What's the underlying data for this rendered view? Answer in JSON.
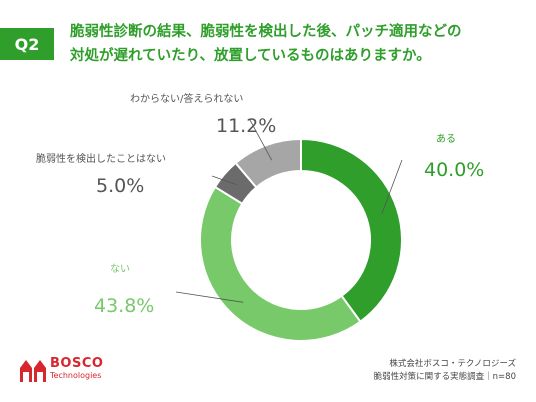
{
  "question_label": "Q2",
  "title_lines": [
    "脆弱性診断の結果、脆弱性を検出した後、パッチ適用などの",
    "対処が遅れていたり、放置しているものはありますか。"
  ],
  "colors": {
    "accent": "#2f9e2b",
    "brand_red": "#d7262d"
  },
  "chart_data": {
    "type": "pie",
    "donut": true,
    "categories": [
      "ある",
      "ない",
      "脆弱性を検出したことはない",
      "わからない/答えられない"
    ],
    "values": [
      40.0,
      43.8,
      5.0,
      11.2
    ],
    "value_labels": [
      "40.0%",
      "43.8%",
      "5.0%",
      "11.2%"
    ],
    "colors": [
      "#2f9e2b",
      "#77c96a",
      "#6b6b6b",
      "#a6a6a6"
    ],
    "label_colors": [
      "#2f9e2b",
      "#77c96a",
      "#555555",
      "#555555"
    ]
  },
  "logo": {
    "name": "BOSCO",
    "sub": "Technologies"
  },
  "source_lines": [
    "株式会社ボスコ・テクノロジーズ",
    "脆弱性対策に関する実態調査｜n=80"
  ]
}
